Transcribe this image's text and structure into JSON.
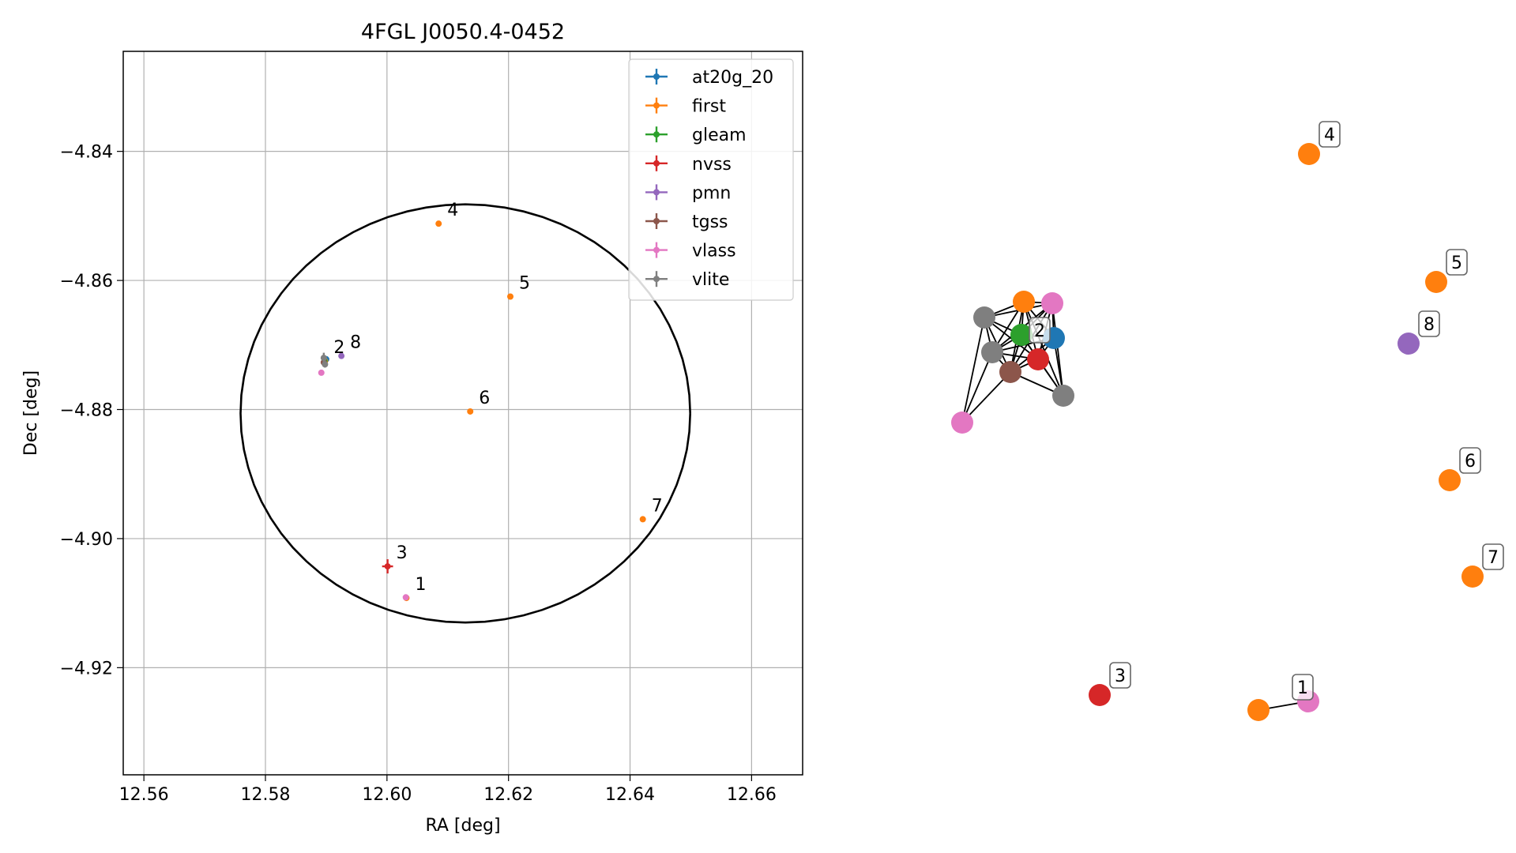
{
  "chart_data": [
    {
      "type": "scatter",
      "title": "4FGL J0050.4-0452",
      "xlabel": "RA [deg]",
      "ylabel": "Dec [deg]",
      "xlim": [
        12.5566,
        12.6684
      ],
      "ylim": [
        -4.9366,
        -4.8245
      ],
      "xticks": [
        12.56,
        12.58,
        12.6,
        12.62,
        12.64,
        12.66
      ],
      "xtick_labels": [
        "12.56",
        "12.58",
        "12.60",
        "12.62",
        "12.64",
        "12.66"
      ],
      "yticks": [
        -4.84,
        -4.86,
        -4.88,
        -4.9,
        -4.92
      ],
      "ytick_labels": [
        "−4.84",
        "−4.86",
        "−4.88",
        "−4.90",
        "−4.92"
      ],
      "grid": true,
      "legend_position": "top-right",
      "series": [
        {
          "name": "at20g_20",
          "color": "#1f77b4",
          "points": [
            {
              "x": 12.59,
              "y": -4.8722
            }
          ]
        },
        {
          "name": "first",
          "color": "#ff7f0e",
          "points": [
            {
              "x": 12.6032,
              "y": -4.9092
            },
            {
              "x": 12.5898,
              "y": -4.8725
            },
            {
              "x": 12.6085,
              "y": -4.8512
            },
            {
              "x": 12.6203,
              "y": -4.8625
            },
            {
              "x": 12.6137,
              "y": -4.8803
            },
            {
              "x": 12.6421,
              "y": -4.897
            }
          ]
        },
        {
          "name": "gleam",
          "color": "#2ca02c",
          "points": [
            {
              "x": 12.5897,
              "y": -4.8725
            }
          ]
        },
        {
          "name": "nvss",
          "color": "#d62728",
          "points": [
            {
              "x": 12.6001,
              "y": -4.9043,
              "xerr": 0.0009,
              "yerr": 0.0011
            }
          ]
        },
        {
          "name": "pmn",
          "color": "#9467bd",
          "points": [
            {
              "x": 12.5925,
              "y": -4.8717
            }
          ]
        },
        {
          "name": "tgss",
          "color": "#8c564b",
          "points": [
            {
              "x": 12.5896,
              "y": -4.8727
            }
          ]
        },
        {
          "name": "vlass",
          "color": "#e377c2",
          "points": [
            {
              "x": 12.6031,
              "y": -4.9091
            },
            {
              "x": 12.5892,
              "y": -4.8743
            }
          ]
        },
        {
          "name": "vlite",
          "color": "#7f7f7f",
          "points": [
            {
              "x": 12.5896,
              "y": -4.872,
              "xerr": 0.0005,
              "yerr": 0.0008
            },
            {
              "x": 12.5898,
              "y": -4.873,
              "xerr": 0.0003,
              "yerr": 0.0005
            }
          ]
        }
      ],
      "annotations": [
        {
          "text": "1",
          "x": 12.6032,
          "y": -4.9092
        },
        {
          "text": "2",
          "x": 12.5898,
          "y": -4.8725
        },
        {
          "text": "3",
          "x": 12.6001,
          "y": -4.9043
        },
        {
          "text": "4",
          "x": 12.6085,
          "y": -4.8512
        },
        {
          "text": "5",
          "x": 12.6203,
          "y": -4.8625
        },
        {
          "text": "6",
          "x": 12.6137,
          "y": -4.8803
        },
        {
          "text": "7",
          "x": 12.6421,
          "y": -4.897
        },
        {
          "text": "8",
          "x": 12.5925,
          "y": -4.8717
        }
      ],
      "ellipse": {
        "center_x": 12.6129,
        "center_y": -4.8806,
        "semi_axis_ra": 0.037,
        "semi_axis_dec": 0.0324,
        "color": "#000000"
      }
    },
    {
      "type": "network",
      "nodes": [
        {
          "id": "n_first2",
          "color": "#ff7f0e"
        },
        {
          "id": "n_vlass2a",
          "color": "#e377c2"
        },
        {
          "id": "n_gleam",
          "color": "#2ca02c"
        },
        {
          "id": "n_at20g",
          "color": "#1f77b4"
        },
        {
          "id": "n_nvss2",
          "color": "#d62728"
        },
        {
          "id": "n_vlite1",
          "color": "#7f7f7f"
        },
        {
          "id": "n_vlite2",
          "color": "#7f7f7f"
        },
        {
          "id": "n_tgss",
          "color": "#8c564b"
        },
        {
          "id": "n_vlite3",
          "color": "#7f7f7f"
        },
        {
          "id": "n_vlass2b",
          "color": "#e377c2"
        },
        {
          "id": "n4",
          "color": "#ff7f0e",
          "label": "4"
        },
        {
          "id": "n5",
          "color": "#ff7f0e",
          "label": "5"
        },
        {
          "id": "n8",
          "color": "#9467bd",
          "label": "8"
        },
        {
          "id": "n6",
          "color": "#ff7f0e",
          "label": "6"
        },
        {
          "id": "n7",
          "color": "#ff7f0e",
          "label": "7"
        },
        {
          "id": "n3",
          "color": "#d62728",
          "label": "3"
        },
        {
          "id": "n1a",
          "color": "#ff7f0e"
        },
        {
          "id": "n1b",
          "color": "#e377c2",
          "label": "1"
        }
      ],
      "cluster_label": {
        "text": "2"
      },
      "edges": [
        [
          "n_first2",
          "n_vlass2a"
        ],
        [
          "n_first2",
          "n_gleam"
        ],
        [
          "n_first2",
          "n_at20g"
        ],
        [
          "n_first2",
          "n_nvss2"
        ],
        [
          "n_first2",
          "n_vlite1"
        ],
        [
          "n_first2",
          "n_vlite2"
        ],
        [
          "n_first2",
          "n_tgss"
        ],
        [
          "n_first2",
          "n_vlite3"
        ],
        [
          "n_vlass2a",
          "n_gleam"
        ],
        [
          "n_vlass2a",
          "n_at20g"
        ],
        [
          "n_vlass2a",
          "n_nvss2"
        ],
        [
          "n_vlass2a",
          "n_vlite1"
        ],
        [
          "n_vlass2a",
          "n_vlite2"
        ],
        [
          "n_vlass2a",
          "n_tgss"
        ],
        [
          "n_vlass2a",
          "n_vlite3"
        ],
        [
          "n_gleam",
          "n_at20g"
        ],
        [
          "n_gleam",
          "n_nvss2"
        ],
        [
          "n_gleam",
          "n_vlite1"
        ],
        [
          "n_gleam",
          "n_vlite2"
        ],
        [
          "n_gleam",
          "n_tgss"
        ],
        [
          "n_gleam",
          "n_vlite3"
        ],
        [
          "n_at20g",
          "n_nvss2"
        ],
        [
          "n_at20g",
          "n_vlite2"
        ],
        [
          "n_at20g",
          "n_tgss"
        ],
        [
          "n_at20g",
          "n_vlite3"
        ],
        [
          "n_nvss2",
          "n_vlite1"
        ],
        [
          "n_nvss2",
          "n_vlite2"
        ],
        [
          "n_nvss2",
          "n_tgss"
        ],
        [
          "n_nvss2",
          "n_vlite3"
        ],
        [
          "n_vlite1",
          "n_vlite2"
        ],
        [
          "n_vlite1",
          "n_tgss"
        ],
        [
          "n_vlite1",
          "n_vlass2b"
        ],
        [
          "n_vlite2",
          "n_tgss"
        ],
        [
          "n_vlite2",
          "n_vlass2b"
        ],
        [
          "n_tgss",
          "n_vlite3"
        ],
        [
          "n_tgss",
          "n_vlass2b"
        ],
        [
          "n1a",
          "n1b"
        ]
      ]
    }
  ]
}
